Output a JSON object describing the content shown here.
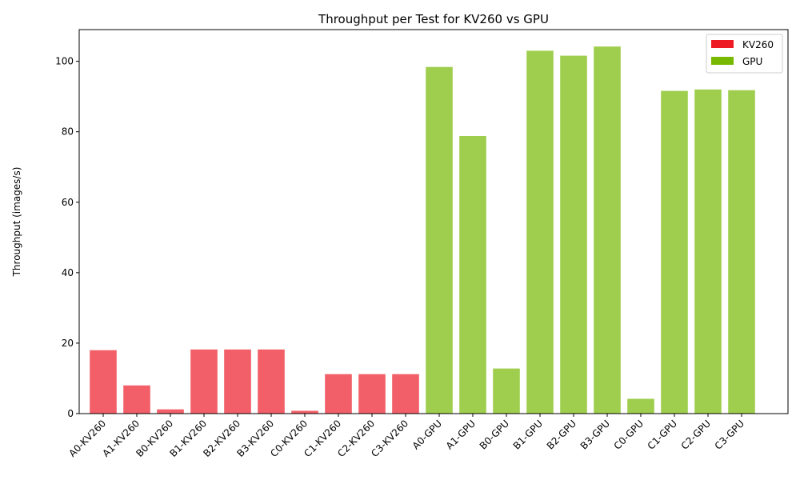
{
  "chart_data": {
    "type": "bar",
    "title": "Throughput per Test for KV260 vs GPU",
    "xlabel": "",
    "ylabel": "Throughput (images/s)",
    "ylim": [
      0,
      109
    ],
    "yticks": [
      0,
      20,
      40,
      60,
      80,
      100
    ],
    "grid": false,
    "legend_position": "top-right",
    "categories": [
      "A0-KV260",
      "A1-KV260",
      "B0-KV260",
      "B1-KV260",
      "B2-KV260",
      "B3-KV260",
      "C0-KV260",
      "C1-KV260",
      "C2-KV260",
      "C3-KV260",
      "A0-GPU",
      "A1-GPU",
      "B0-GPU",
      "B1-GPU",
      "B2-GPU",
      "B3-GPU",
      "C0-GPU",
      "C1-GPU",
      "C2-GPU",
      "C3-GPU"
    ],
    "values": [
      18.0,
      8.0,
      1.2,
      18.2,
      18.2,
      18.2,
      0.8,
      11.2,
      11.2,
      11.2,
      98.4,
      78.8,
      12.8,
      103.0,
      101.6,
      104.2,
      4.2,
      91.6,
      92.0,
      91.8
    ],
    "series_for_category": [
      "KV260",
      "KV260",
      "KV260",
      "KV260",
      "KV260",
      "KV260",
      "KV260",
      "KV260",
      "KV260",
      "KV260",
      "GPU",
      "GPU",
      "GPU",
      "GPU",
      "GPU",
      "GPU",
      "GPU",
      "GPU",
      "GPU",
      "GPU"
    ],
    "legend": [
      {
        "name": "KV260",
        "color": "#ed1c24",
        "bar_color": "#f25f68"
      },
      {
        "name": "GPU",
        "color": "#76b900",
        "bar_color": "#9fce4f"
      }
    ]
  }
}
